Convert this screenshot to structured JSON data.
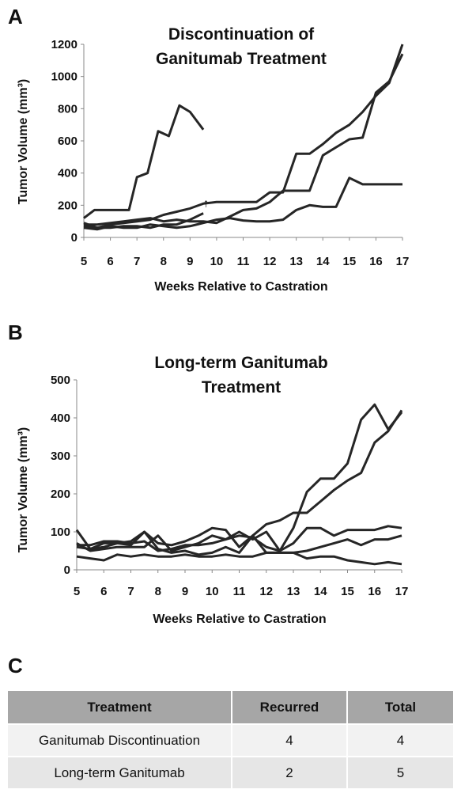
{
  "chart_data": [
    {
      "type": "line",
      "panel": "A",
      "title": "Discontinuation of Ganitumab Treatment",
      "ylabel": "Tumor  Volume (mm³)",
      "xlabel": "Weeks Relative to Castration",
      "xlim": [
        5,
        17
      ],
      "ylim": [
        0,
        1200
      ],
      "xticks": [
        "5",
        "6",
        "7",
        "8",
        "9",
        "10",
        "11",
        "12",
        "13",
        "14",
        "15",
        "16",
        "17"
      ],
      "yticks": [
        "0",
        "200",
        "400",
        "600",
        "800",
        "1000",
        "1200"
      ],
      "annotation": "↑",
      "annotation_x": 9.6,
      "annotation_y": 190,
      "series": [
        {
          "x": [
            5,
            5.4,
            6.2,
            6.7,
            7,
            7.4,
            7.8,
            8.2,
            8.6,
            9,
            9.5
          ],
          "values": [
            120,
            170,
            170,
            170,
            375,
            400,
            660,
            630,
            820,
            780,
            670
          ]
        },
        {
          "x": [
            5,
            5.5,
            6,
            6.5,
            7,
            7.5,
            8,
            8.5,
            9,
            9.5,
            10,
            10.5,
            11,
            11.5,
            12,
            12.5,
            13,
            13.5,
            14,
            14.5,
            15,
            15.5,
            16,
            16.5,
            17
          ],
          "values": [
            70,
            60,
            80,
            90,
            100,
            110,
            140,
            160,
            180,
            210,
            220,
            220,
            220,
            220,
            280,
            280,
            520,
            520,
            580,
            650,
            700,
            780,
            880,
            960,
            1200
          ]
        },
        {
          "x": [
            5,
            5.5,
            6,
            6.5,
            7,
            7.5,
            8,
            8.5,
            9,
            9.5,
            10,
            10.5,
            11,
            11.5,
            12,
            12.5,
            13,
            13.5,
            14,
            14.5,
            15,
            15.5,
            16,
            16.5,
            17
          ],
          "values": [
            80,
            80,
            90,
            100,
            110,
            120,
            100,
            110,
            100,
            100,
            90,
            130,
            170,
            180,
            220,
            290,
            290,
            290,
            510,
            560,
            610,
            620,
            900,
            970,
            1140
          ]
        },
        {
          "x": [
            5,
            5.5,
            6,
            6.5,
            7,
            7.5,
            8,
            8.5,
            9,
            9.5,
            10,
            10.5,
            11,
            11.5,
            12,
            12.5,
            13,
            13.5,
            14,
            14.5,
            15,
            15.5,
            16,
            16.5,
            17
          ],
          "values": [
            60,
            50,
            70,
            60,
            60,
            80,
            70,
            60,
            70,
            90,
            110,
            120,
            105,
            100,
            100,
            110,
            170,
            200,
            190,
            190,
            370,
            330,
            330,
            330,
            330
          ]
        },
        {
          "x": [
            5,
            5.5,
            6,
            6.5,
            7,
            7.5,
            8,
            8.5,
            9,
            9.5
          ],
          "values": [
            90,
            60,
            60,
            70,
            70,
            60,
            80,
            80,
            110,
            150
          ]
        }
      ]
    },
    {
      "type": "line",
      "panel": "B",
      "title": "Long-term Ganitumab Treatment",
      "ylabel": "Tumor  Volume (mm³)",
      "xlabel": "Weeks Relative to Castration",
      "xlim": [
        5,
        17
      ],
      "ylim": [
        0,
        500
      ],
      "xticks": [
        "5",
        "6",
        "7",
        "8",
        "9",
        "10",
        "11",
        "12",
        "13",
        "14",
        "15",
        "16",
        "17"
      ],
      "yticks": [
        "0",
        "100",
        "200",
        "300",
        "400",
        "500"
      ],
      "series": [
        {
          "x": [
            5,
            5.5,
            6,
            6.5,
            7,
            7.5,
            8,
            8.5,
            9,
            9.5,
            10,
            10.5,
            11,
            11.5,
            12,
            12.5,
            13,
            13.5,
            14,
            14.5,
            15,
            15.5,
            16,
            16.5,
            17
          ],
          "values": [
            105,
            55,
            60,
            70,
            75,
            100,
            70,
            65,
            75,
            90,
            110,
            105,
            60,
            90,
            120,
            130,
            150,
            150,
            180,
            210,
            235,
            255,
            335,
            365,
            420
          ]
        },
        {
          "x": [
            5,
            5.5,
            6,
            6.5,
            7,
            7.5,
            8,
            8.5,
            9,
            9.5,
            10,
            10.5,
            11,
            11.5,
            12,
            12.5,
            13,
            13.5,
            14,
            14.5,
            15,
            15.5,
            16,
            16.5,
            17
          ],
          "values": [
            70,
            50,
            55,
            60,
            60,
            60,
            90,
            50,
            60,
            70,
            90,
            80,
            100,
            80,
            100,
            50,
            110,
            205,
            240,
            240,
            280,
            395,
            435,
            370,
            415
          ]
        },
        {
          "x": [
            5,
            5.5,
            6,
            6.5,
            7,
            7.5,
            8,
            8.5,
            9,
            9.5,
            10,
            10.5,
            11,
            11.5,
            12,
            12.5,
            13,
            13.5,
            14,
            14.5,
            15,
            15.5,
            16,
            16.5,
            17
          ],
          "values": [
            65,
            65,
            75,
            75,
            70,
            75,
            50,
            55,
            65,
            65,
            70,
            80,
            90,
            85,
            60,
            50,
            70,
            110,
            110,
            90,
            105,
            105,
            105,
            115,
            110
          ]
        },
        {
          "x": [
            5,
            5.5,
            6,
            6.5,
            7,
            7.5,
            8,
            8.5,
            9,
            9.5,
            10,
            10.5,
            11,
            11.5,
            12,
            12.5,
            13,
            13.5,
            14,
            14.5,
            15,
            15.5,
            16,
            16.5,
            17
          ],
          "values": [
            60,
            55,
            70,
            70,
            65,
            100,
            55,
            45,
            50,
            40,
            45,
            60,
            45,
            90,
            45,
            45,
            45,
            50,
            60,
            70,
            80,
            65,
            80,
            80,
            90
          ]
        },
        {
          "x": [
            5,
            5.5,
            6,
            6.5,
            7,
            7.5,
            8,
            8.5,
            9,
            9.5,
            10,
            10.5,
            11,
            11.5,
            12,
            12.5,
            13,
            13.5,
            14,
            14.5,
            15,
            15.5,
            16,
            16.5,
            17
          ],
          "values": [
            35,
            30,
            25,
            40,
            35,
            40,
            35,
            35,
            40,
            35,
            35,
            40,
            35,
            35,
            45,
            45,
            45,
            30,
            35,
            35,
            25,
            20,
            15,
            20,
            15
          ]
        }
      ]
    }
  ],
  "panels": {
    "a": {
      "letter": "A",
      "title_line1": "Discontinuation of",
      "title_line2": "Ganitumab Treatment",
      "ylabel": "Tumor  Volume (mm³)",
      "xlabel": "Weeks Relative to Castration"
    },
    "b": {
      "letter": "B",
      "title_line1": "Long-term Ganitumab",
      "title_line2": "Treatment",
      "ylabel": "Tumor  Volume (mm³)",
      "xlabel": "Weeks Relative to Castration"
    },
    "c": {
      "letter": "C"
    }
  },
  "table": {
    "headers": [
      "Treatment",
      "Recurred",
      "Total"
    ],
    "rows": [
      [
        "Ganitumab Discontinuation",
        "4",
        "4"
      ],
      [
        "Long-term Ganitumab",
        "2",
        "5"
      ]
    ]
  },
  "colors": {
    "line": "#262626",
    "table_header": "#a6a6a6",
    "row_light": "#f2f2f2",
    "row_dark": "#e6e6e6"
  }
}
